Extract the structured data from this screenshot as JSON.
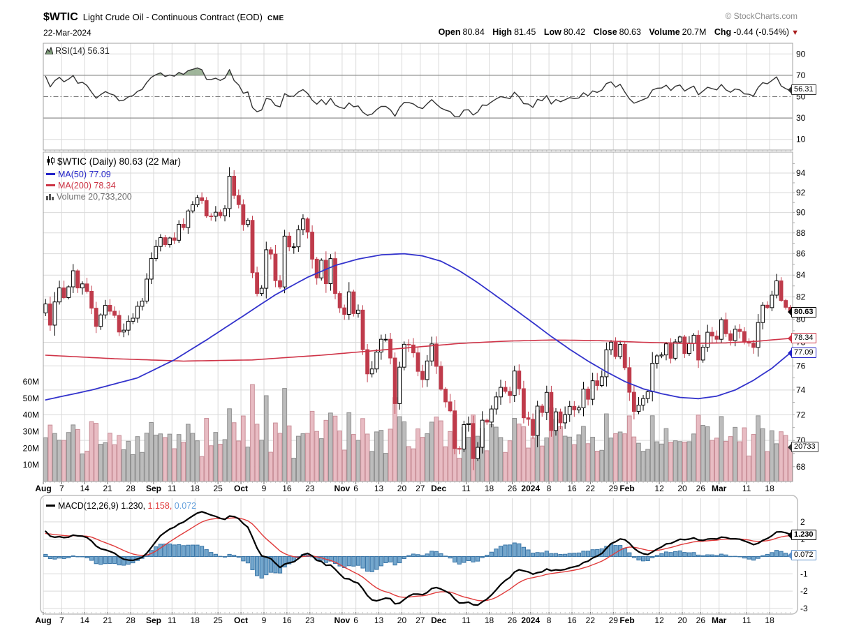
{
  "header": {
    "symbol": "$WTIC",
    "title": "Light Crude Oil - Continuous Contract (EOD)",
    "exchange": "CME",
    "date": "22-Mar-2024",
    "copyright": "© StockCharts.com",
    "quote": {
      "open_label": "Open",
      "open": "80.84",
      "high_label": "High",
      "high": "81.45",
      "low_label": "Low",
      "low": "80.42",
      "close_label": "Close",
      "close": "80.63",
      "volume_label": "Volume",
      "volume": "20.7M",
      "chg_label": "Chg",
      "chg": "-0.44 (-0.54%)",
      "direction": "▼"
    }
  },
  "rsi_panel": {
    "legend": "RSI(14) 56.31",
    "axis_labels": [
      "90",
      "70",
      "50",
      "30",
      "10"
    ],
    "axis_values": [
      90,
      70,
      50,
      30,
      10
    ],
    "overbought": 70,
    "oversold": 30,
    "mid": 50,
    "callout": {
      "text": "56.31",
      "value": 56.31,
      "color": "#333333",
      "bold": false
    }
  },
  "main_panel": {
    "legend_symbol": "$WTIC (Daily) 80.63 (22 Mar)",
    "legend_ma50": "MA(50) 77.09",
    "legend_ma200": "MA(200) 78.34",
    "legend_volume": "Volume 20,733,200",
    "price_axis_values": [
      94,
      92,
      90,
      88,
      86,
      84,
      82,
      80,
      78,
      76,
      74,
      72,
      70,
      68
    ],
    "volume_axis_labels": [
      "60M",
      "50M",
      "40M",
      "30M",
      "20M",
      "10M"
    ],
    "volume_axis_values": [
      60,
      50,
      40,
      30,
      20,
      10
    ],
    "callouts": [
      {
        "text": "80.63",
        "value": 80.63,
        "color": "#000000",
        "bold": true,
        "panel": "price"
      },
      {
        "text": "78.34",
        "value": 78.34,
        "color": "#cc3344",
        "bold": false,
        "panel": "price"
      },
      {
        "text": "77.09",
        "value": 77.09,
        "color": "#2323c8",
        "bold": false,
        "panel": "price"
      },
      {
        "text": "20733",
        "value": 20.733,
        "color": "#333333",
        "bold": false,
        "panel": "volume"
      }
    ]
  },
  "macd_panel": {
    "legend_left": "MACD(12,26,9) 1.230, ",
    "legend_signal": "1.158, ",
    "legend_hist": "0.072",
    "axis_values": [
      2,
      1,
      -1,
      -2,
      -3
    ],
    "callouts": [
      {
        "text": "1.230",
        "value": 1.23,
        "color": "#000000",
        "bold": true,
        "panel": "macd"
      },
      {
        "text": "0.072",
        "value": 0.072,
        "color": "#5b8fc9",
        "bold": false,
        "panel": "macd"
      }
    ]
  },
  "x_axis": {
    "ticks": [
      {
        "label": "Aug",
        "i": 0,
        "bold": true
      },
      {
        "label": "7",
        "i": 4
      },
      {
        "label": "14",
        "i": 9
      },
      {
        "label": "21",
        "i": 14
      },
      {
        "label": "28",
        "i": 19
      },
      {
        "label": "Sep",
        "i": 24,
        "bold": true
      },
      {
        "label": "11",
        "i": 28
      },
      {
        "label": "18",
        "i": 33
      },
      {
        "label": "25",
        "i": 38
      },
      {
        "label": "Oct",
        "i": 43,
        "bold": true
      },
      {
        "label": "9",
        "i": 48
      },
      {
        "label": "16",
        "i": 53
      },
      {
        "label": "23",
        "i": 58
      },
      {
        "label": "Nov",
        "i": 65,
        "bold": true
      },
      {
        "label": "6",
        "i": 68
      },
      {
        "label": "13",
        "i": 73
      },
      {
        "label": "20",
        "i": 78
      },
      {
        "label": "27",
        "i": 82
      },
      {
        "label": "Dec",
        "i": 86,
        "bold": true
      },
      {
        "label": "11",
        "i": 92
      },
      {
        "label": "18",
        "i": 97
      },
      {
        "label": "26",
        "i": 102
      },
      {
        "label": "2024",
        "i": 106,
        "bold": true
      },
      {
        "label": "8",
        "i": 110
      },
      {
        "label": "16",
        "i": 115
      },
      {
        "label": "22",
        "i": 119
      },
      {
        "label": "29",
        "i": 124
      },
      {
        "label": "Feb",
        "i": 127,
        "bold": true
      },
      {
        "label": "12",
        "i": 134
      },
      {
        "label": "20",
        "i": 139
      },
      {
        "label": "26",
        "i": 143
      },
      {
        "label": "Mar",
        "i": 147,
        "bold": true
      },
      {
        "label": "11",
        "i": 153
      },
      {
        "label": "18",
        "i": 158
      }
    ]
  },
  "colors": {
    "grid": "#d9d9d9",
    "panel_border": "#a0a0a0",
    "macd_box_border": "#bdbdbd",
    "candle_up_fill": "#ffffff",
    "candle_down": "#bf3b4b",
    "candle_outline": "#000000",
    "ma50": "#3333cc",
    "ma200": "#cf3347",
    "vol_up_fill": "#bcbcbc",
    "vol_up_stroke": "#8f8f8f",
    "vol_down_fill": "#e8bcc3",
    "vol_down_stroke": "#c98f98",
    "rsi_line": "#333333",
    "rsi_fill": "#8fa989",
    "rsi_bands": "#8c8c8c",
    "macd_line": "#000000",
    "macd_signal": "#e03b3b",
    "hist_fill": "#74a7cd",
    "hist_stroke": "#3a76a8",
    "chg_arrow": "#aa1f1f"
  },
  "chart_data": {
    "type": "candlestick",
    "title": "$WTIC Light Crude Oil - Continuous Contract (EOD) CME, Daily, Aug 2023 - 22 Mar 2024",
    "scale": "log",
    "price_range": [
      66.9,
      96.2
    ],
    "volume_range_m": [
      0,
      62
    ],
    "rsi_range": [
      0,
      100
    ],
    "macd_range": [
      -3.2,
      3.3
    ],
    "last_bar": {
      "date": "22-Mar-2024",
      "open": 80.84,
      "high": 81.45,
      "low": 80.42,
      "close": 80.63,
      "volume": 20733200
    },
    "close": [
      81.37,
      79.49,
      81.55,
      82.82,
      81.94,
      82.92,
      84.4,
      82.82,
      83.19,
      82.51,
      80.99,
      79.38,
      80.39,
      81.25,
      80.72,
      80.35,
      78.89,
      79.05,
      79.83,
      80.1,
      81.16,
      81.63,
      83.63,
      85.55,
      86.69,
      87.54,
      86.87,
      87.51,
      87.29,
      88.84,
      88.52,
      90.16,
      90.77,
      91.48,
      91.2,
      89.66,
      89.63,
      90.03,
      89.68,
      90.39,
      93.68,
      91.71,
      90.79,
      88.82,
      89.23,
      84.22,
      82.31,
      82.79,
      86.38,
      85.97,
      83.49,
      82.91,
      87.69,
      86.66,
      86.66,
      88.32,
      89.37,
      88.08,
      85.49,
      83.74,
      85.39,
      83.21,
      85.54,
      82.31,
      81.02,
      80.44,
      82.46,
      80.51,
      80.82,
      77.37,
      75.33,
      75.74,
      77.17,
      78.26,
      78.26,
      76.66,
      72.9,
      75.89,
      77.83,
      77.77,
      77.1,
      75.54,
      74.86,
      76.41,
      77.86,
      75.96,
      74.07,
      73.04,
      72.32,
      69.38,
      69.34,
      71.23,
      71.32,
      68.61,
      69.47,
      71.58,
      71.43,
      72.47,
      73.44,
      74.22,
      73.89,
      73.56,
      75.57,
      74.11,
      71.77,
      71.65,
      70.38,
      72.7,
      72.19,
      73.81,
      70.77,
      72.24,
      71.37,
      72.02,
      72.68,
      72.4,
      72.56,
      74.08,
      73.25,
      74.76,
      74.37,
      75.09,
      77.36,
      78.01,
      76.78,
      77.82,
      75.85,
      73.82,
      72.28,
      72.78,
      73.31,
      73.86,
      76.22,
      76.84,
      76.92,
      77.87,
      76.64,
      78.03,
      78.46,
      77.04,
      77.91,
      78.61,
      76.49,
      77.58,
      78.87,
      78.54,
      78.26,
      79.97,
      78.74,
      78.15,
      79.13,
      78.93,
      78.01,
      77.93,
      77.56,
      79.72,
      81.26,
      81.04,
      82.16,
      83.47,
      81.68,
      81.07,
      80.63
    ],
    "ma50_anchors": [
      [
        0,
        73.2
      ],
      [
        10,
        74.0
      ],
      [
        20,
        75.0
      ],
      [
        28,
        76.5
      ],
      [
        35,
        78.2
      ],
      [
        43,
        80.3
      ],
      [
        50,
        82.2
      ],
      [
        57,
        83.8
      ],
      [
        63,
        84.9
      ],
      [
        68,
        85.5
      ],
      [
        73,
        85.9
      ],
      [
        78,
        86.0
      ],
      [
        82,
        85.8
      ],
      [
        86,
        85.3
      ],
      [
        90,
        84.4
      ],
      [
        94,
        83.3
      ],
      [
        98,
        82.1
      ],
      [
        102,
        80.9
      ],
      [
        106,
        79.7
      ],
      [
        110,
        78.5
      ],
      [
        114,
        77.4
      ],
      [
        118,
        76.4
      ],
      [
        122,
        75.5
      ],
      [
        126,
        74.7
      ],
      [
        130,
        74.1
      ],
      [
        134,
        73.7
      ],
      [
        138,
        73.4
      ],
      [
        142,
        73.3
      ],
      [
        146,
        73.5
      ],
      [
        150,
        74.0
      ],
      [
        154,
        74.8
      ],
      [
        158,
        75.8
      ],
      [
        162,
        77.09
      ]
    ],
    "ma200_anchors": [
      [
        0,
        76.9
      ],
      [
        15,
        76.6
      ],
      [
        30,
        76.4
      ],
      [
        45,
        76.5
      ],
      [
        60,
        76.9
      ],
      [
        75,
        77.4
      ],
      [
        90,
        77.9
      ],
      [
        100,
        78.1
      ],
      [
        110,
        78.2
      ],
      [
        120,
        78.15
      ],
      [
        130,
        78.0
      ],
      [
        140,
        77.9
      ],
      [
        148,
        77.95
      ],
      [
        155,
        78.1
      ],
      [
        162,
        78.34
      ]
    ],
    "rsi_seed": {
      "avg_gain": 0.6,
      "avg_loss": 0.27
    },
    "macd_seed": {
      "ema12_offset": 0.3,
      "ema26_offset": -1.3,
      "signal0": 1.3
    },
    "volume_model": {
      "base_m": 13,
      "per_unit_change_m": 7.2,
      "noise_m": 14,
      "min_m": 9,
      "max_m": 60,
      "last_m": 20.733
    },
    "wick_model": {
      "min": 0.12,
      "rand": 0.55,
      "big_move_extra": 0.3
    },
    "seed": 7
  }
}
